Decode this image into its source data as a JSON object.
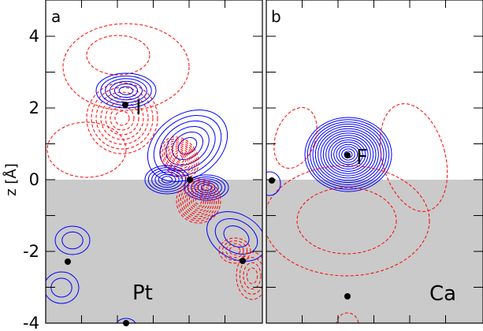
{
  "chart_data": {
    "type": "contour",
    "ylabel": "z [Å]",
    "ylim": [
      -4,
      5
    ],
    "yticks": [
      "4",
      "2",
      "0",
      "-2",
      "-4"
    ],
    "surface_shading_below_z": 0,
    "colors": {
      "positive": "#0000ff",
      "negative": "#ff0000",
      "substrate": "#cacaca"
    },
    "panels": [
      {
        "label": "a",
        "substrate_label": "Pt",
        "adsorbate_label": "I"
      },
      {
        "label": "b",
        "substrate_label": "Ca",
        "adsorbate_label": "F"
      }
    ]
  }
}
